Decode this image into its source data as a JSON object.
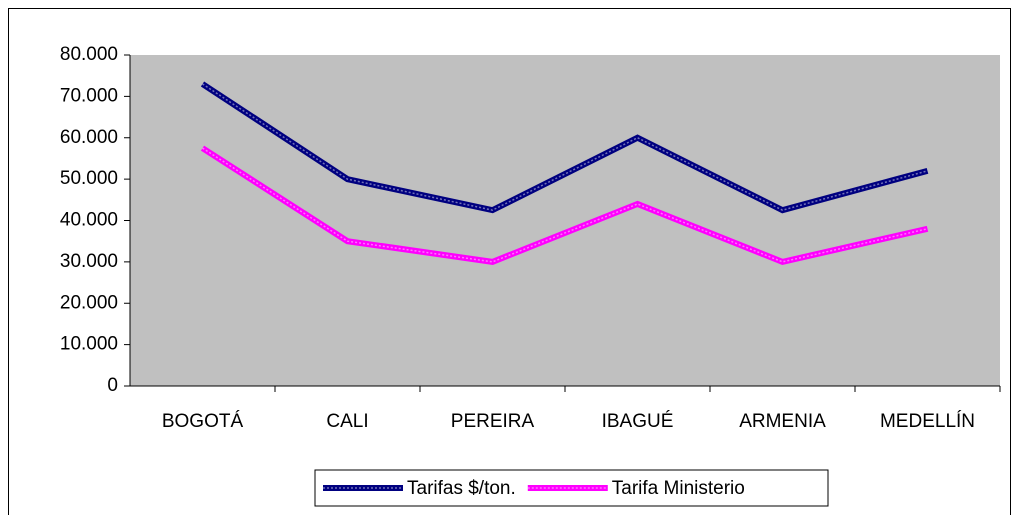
{
  "chart_data": {
    "type": "line",
    "categories": [
      "BOGOTÁ",
      "CALI",
      "PEREIRA",
      "IBAGUÉ",
      "ARMENIA",
      "MEDELLÍN"
    ],
    "series": [
      {
        "name": "Tarifas $/ton.",
        "color": "#000080",
        "values": [
          73000,
          50000,
          42500,
          60000,
          42500,
          52000
        ]
      },
      {
        "name": "Tarifa Ministerio",
        "color": "#ff00ff",
        "values": [
          57500,
          35000,
          30000,
          44000,
          30000,
          38000
        ]
      }
    ],
    "ylim": [
      0,
      80000
    ],
    "yticks": [
      0,
      {
        "value": 10000,
        "label": "10.000"
      },
      {
        "value": 20000,
        "label": "20.000"
      },
      {
        "value": 30000,
        "label": "30.000"
      },
      {
        "value": 40000,
        "label": "40.000"
      },
      {
        "value": 50000,
        "label": "50.000"
      },
      {
        "value": 60000,
        "label": "60.000"
      },
      {
        "value": 70000,
        "label": "70.000"
      },
      {
        "value": 80000,
        "label": "80.000"
      }
    ],
    "grid": false,
    "legend": "bottom",
    "plot_background": "#c0c0c0"
  }
}
